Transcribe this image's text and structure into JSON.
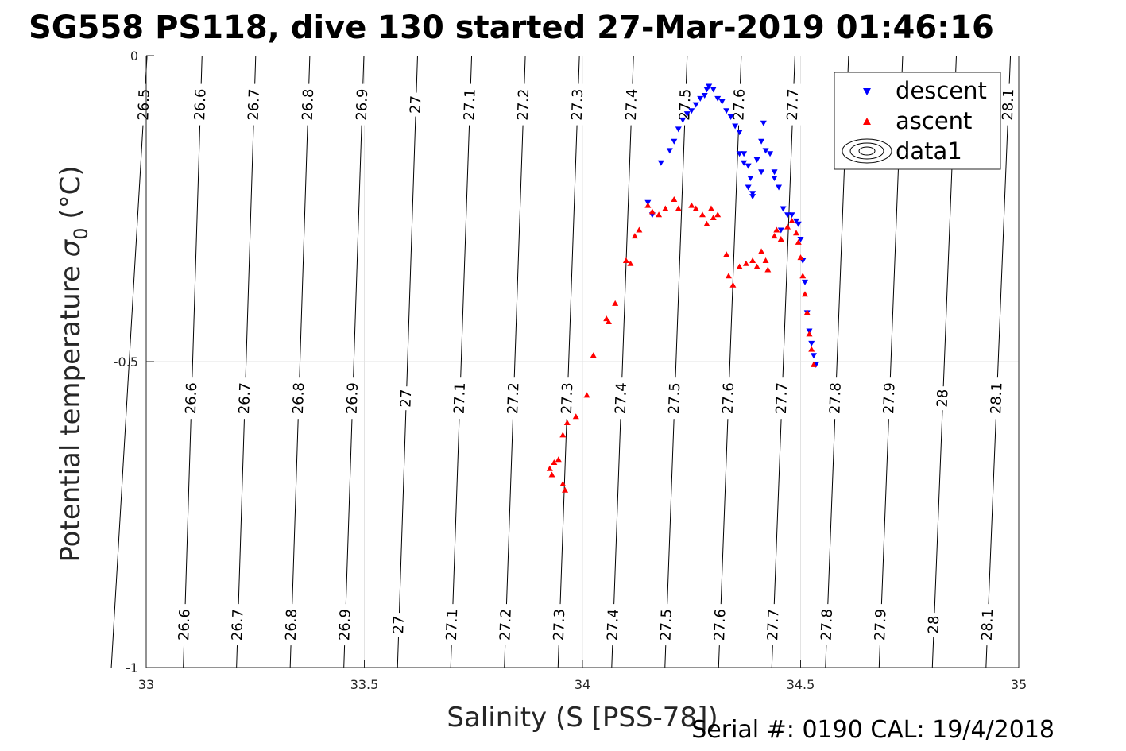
{
  "title": "SG558 PS118, dive 130 started 27-Mar-2019 01:46:16",
  "footer": "Serial #: 0190  CAL: 19/4/2018",
  "chart_data": {
    "type": "scatter",
    "title": "SG558 PS118, dive 130 started 27-Mar-2019 01:46:16",
    "xlabel": "Salinity (S [PSS-78])",
    "ylabel": "Potential temperature",
    "ylabel_symbol": "σ",
    "ylabel_subscript": "0",
    "ylabel_unit": "(°C)",
    "xlim": [
      33,
      35
    ],
    "ylim": [
      -1,
      0
    ],
    "x_ticks": [
      33,
      33.5,
      34,
      34.5,
      35
    ],
    "x_tick_labels": [
      "33",
      "33.5",
      "34",
      "34.5",
      "35"
    ],
    "y_ticks": [
      0,
      -0.5,
      -1
    ],
    "y_tick_labels": [
      "0",
      "-0.5",
      "-1"
    ],
    "grid": true,
    "legend_position": "top-right",
    "legend": [
      "descent",
      "ascent",
      "data1"
    ],
    "contours": {
      "levels": [
        {
          "label": "26.5",
          "s_top": 33.002,
          "s_bottom": 32.92
        },
        {
          "label": "26.6",
          "s_top": 33.128,
          "s_bottom": 33.085
        },
        {
          "label": "26.7",
          "s_top": 33.251,
          "s_bottom": 33.207
        },
        {
          "label": "26.8",
          "s_top": 33.375,
          "s_bottom": 33.33
        },
        {
          "label": "26.9",
          "s_top": 33.499,
          "s_bottom": 33.453
        },
        {
          "label": "27",
          "s_top": 33.622,
          "s_bottom": 33.576
        },
        {
          "label": "27.1",
          "s_top": 33.746,
          "s_bottom": 33.698
        },
        {
          "label": "27.2",
          "s_top": 33.869,
          "s_bottom": 33.821
        },
        {
          "label": "27.3",
          "s_top": 33.993,
          "s_bottom": 33.944
        },
        {
          "label": "27.4",
          "s_top": 34.117,
          "s_bottom": 34.067
        },
        {
          "label": "27.5",
          "s_top": 34.24,
          "s_bottom": 34.189
        },
        {
          "label": "27.6",
          "s_top": 34.364,
          "s_bottom": 34.312
        },
        {
          "label": "27.7",
          "s_top": 34.487,
          "s_bottom": 34.434
        },
        {
          "label": "27.8",
          "s_top": 34.61,
          "s_bottom": 34.557
        },
        {
          "label": "27.9",
          "s_top": 34.734,
          "s_bottom": 34.68
        },
        {
          "label": "28",
          "s_top": 34.857,
          "s_bottom": 34.802
        },
        {
          "label": "28.1",
          "s_top": 34.981,
          "s_bottom": 34.925
        }
      ],
      "label_rows": [
        {
          "theta": -0.08,
          "labels": [
            "26.5",
            "26.6",
            "26.7",
            "26.8",
            "26.9",
            "27",
            "27.1",
            "27.2",
            "27.3",
            "27.4",
            "27.5",
            "27.6",
            "27.7",
            "28.1"
          ]
        },
        {
          "theta": -0.56,
          "labels": [
            "26.6",
            "26.7",
            "26.8",
            "26.9",
            "27",
            "27.1",
            "27.2",
            "27.3",
            "27.4",
            "27.5",
            "27.6",
            "27.7",
            "27.8",
            "27.9",
            "28",
            "28.1"
          ]
        },
        {
          "theta": -0.93,
          "labels": [
            "26.6",
            "26.7",
            "26.8",
            "26.9",
            "27",
            "27.1",
            "27.2",
            "27.3",
            "27.4",
            "27.5",
            "27.6",
            "27.7",
            "27.8",
            "27.9",
            "28",
            "28.1"
          ]
        }
      ]
    },
    "series": [
      {
        "name": "descent",
        "color": "#0000ff",
        "marker": "triangle-down",
        "points": [
          [
            34.15,
            -0.24
          ],
          [
            34.16,
            -0.26
          ],
          [
            34.18,
            -0.175
          ],
          [
            34.2,
            -0.155
          ],
          [
            34.21,
            -0.14
          ],
          [
            34.22,
            -0.12
          ],
          [
            34.23,
            -0.105
          ],
          [
            34.24,
            -0.095
          ],
          [
            34.25,
            -0.09
          ],
          [
            34.26,
            -0.08
          ],
          [
            34.27,
            -0.07
          ],
          [
            34.28,
            -0.065
          ],
          [
            34.285,
            -0.055
          ],
          [
            34.29,
            -0.05
          ],
          [
            34.3,
            -0.055
          ],
          [
            34.31,
            -0.07
          ],
          [
            34.32,
            -0.075
          ],
          [
            34.33,
            -0.09
          ],
          [
            34.34,
            -0.1
          ],
          [
            34.35,
            -0.115
          ],
          [
            34.36,
            -0.125
          ],
          [
            34.36,
            -0.16
          ],
          [
            34.37,
            -0.16
          ],
          [
            34.37,
            -0.175
          ],
          [
            34.38,
            -0.18
          ],
          [
            34.385,
            -0.2
          ],
          [
            34.38,
            -0.215
          ],
          [
            34.39,
            -0.225
          ],
          [
            34.39,
            -0.23
          ],
          [
            34.4,
            -0.17
          ],
          [
            34.41,
            -0.19
          ],
          [
            34.42,
            -0.155
          ],
          [
            34.41,
            -0.14
          ],
          [
            34.415,
            -0.11
          ],
          [
            34.43,
            -0.16
          ],
          [
            34.44,
            -0.19
          ],
          [
            34.45,
            -0.215
          ],
          [
            34.44,
            -0.2
          ],
          [
            34.46,
            -0.25
          ],
          [
            34.455,
            -0.285
          ],
          [
            34.47,
            -0.26
          ],
          [
            34.48,
            -0.26
          ],
          [
            34.49,
            -0.27
          ],
          [
            34.495,
            -0.275
          ],
          [
            34.5,
            -0.3
          ],
          [
            34.505,
            -0.335
          ],
          [
            34.51,
            -0.37
          ],
          [
            34.515,
            -0.42
          ],
          [
            34.52,
            -0.45
          ],
          [
            34.525,
            -0.47
          ],
          [
            34.53,
            -0.49
          ],
          [
            34.535,
            -0.505
          ]
        ]
      },
      {
        "name": "ascent",
        "color": "#ff0000",
        "marker": "triangle-up",
        "points": [
          [
            33.925,
            -0.675
          ],
          [
            33.93,
            -0.685
          ],
          [
            33.935,
            -0.665
          ],
          [
            33.945,
            -0.66
          ],
          [
            33.955,
            -0.7
          ],
          [
            33.96,
            -0.71
          ],
          [
            33.955,
            -0.62
          ],
          [
            33.965,
            -0.6
          ],
          [
            33.985,
            -0.59
          ],
          [
            34.01,
            -0.555
          ],
          [
            34.025,
            -0.49
          ],
          [
            34.055,
            -0.43
          ],
          [
            34.06,
            -0.435
          ],
          [
            34.075,
            -0.405
          ],
          [
            34.1,
            -0.335
          ],
          [
            34.11,
            -0.34
          ],
          [
            34.12,
            -0.295
          ],
          [
            34.13,
            -0.285
          ],
          [
            34.15,
            -0.245
          ],
          [
            34.16,
            -0.255
          ],
          [
            34.175,
            -0.26
          ],
          [
            34.19,
            -0.25
          ],
          [
            34.21,
            -0.235
          ],
          [
            34.22,
            -0.25
          ],
          [
            34.25,
            -0.245
          ],
          [
            34.26,
            -0.25
          ],
          [
            34.275,
            -0.26
          ],
          [
            34.285,
            -0.275
          ],
          [
            34.295,
            -0.25
          ],
          [
            34.3,
            -0.265
          ],
          [
            34.31,
            -0.26
          ],
          [
            34.33,
            -0.325
          ],
          [
            34.335,
            -0.36
          ],
          [
            34.345,
            -0.375
          ],
          [
            34.36,
            -0.345
          ],
          [
            34.375,
            -0.34
          ],
          [
            34.39,
            -0.335
          ],
          [
            34.4,
            -0.345
          ],
          [
            34.41,
            -0.32
          ],
          [
            34.42,
            -0.335
          ],
          [
            34.425,
            -0.35
          ],
          [
            34.44,
            -0.295
          ],
          [
            34.445,
            -0.285
          ],
          [
            34.455,
            -0.3
          ],
          [
            34.47,
            -0.28
          ],
          [
            34.48,
            -0.27
          ],
          [
            34.49,
            -0.29
          ],
          [
            34.495,
            -0.305
          ],
          [
            34.5,
            -0.33
          ],
          [
            34.505,
            -0.36
          ],
          [
            34.51,
            -0.39
          ],
          [
            34.515,
            -0.42
          ],
          [
            34.52,
            -0.455
          ],
          [
            34.525,
            -0.48
          ],
          [
            34.53,
            -0.505
          ]
        ]
      }
    ]
  }
}
